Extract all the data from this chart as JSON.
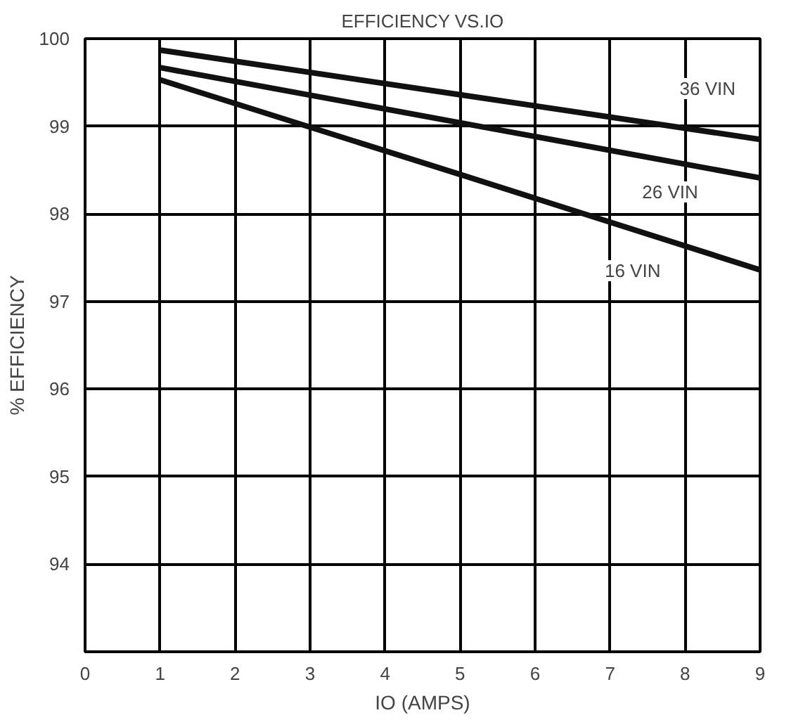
{
  "chart_data": {
    "type": "line",
    "title": "EFFICIENCY VS.IO",
    "xlabel": "IO (AMPS)",
    "ylabel": "% EFFICIENCY",
    "xlim": [
      0,
      9
    ],
    "ylim": [
      93,
      100
    ],
    "xticks": [
      0,
      1,
      2,
      3,
      4,
      5,
      6,
      7,
      8,
      9
    ],
    "yticks": [
      {
        "value": 93,
        "label": null
      },
      94,
      95,
      96,
      97,
      98,
      99,
      100
    ],
    "grid": true,
    "marker": "none",
    "line_style": "solid",
    "series": [
      {
        "color": "#111111",
        "x": [
          1,
          5,
          9
        ],
        "values": [
          99.87,
          99.36,
          98.85
        ]
      },
      {
        "color": "#111111",
        "x": [
          1,
          5,
          9
        ],
        "values": [
          99.67,
          99.04,
          98.41
        ]
      },
      {
        "color": "#111111",
        "x": [
          1,
          5,
          9
        ],
        "values": [
          99.53,
          98.45,
          97.36
        ]
      }
    ],
    "annotations": [
      {
        "text": "36 VIN",
        "x": 8.3,
        "y": 99.43
      },
      {
        "text": "26 VIN",
        "x": 7.8,
        "y": 98.25
      },
      {
        "text": "16 VIN",
        "x": 7.3,
        "y": 97.35
      }
    ]
  }
}
